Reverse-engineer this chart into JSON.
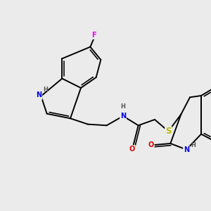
{
  "bg_color": "#ebebeb",
  "bond_color": "#000000",
  "bond_width": 1.4,
  "atom_colors": {
    "F": "#ee00ee",
    "N": "#0000ee",
    "O": "#dd0000",
    "S": "#bbbb00",
    "H": "#555555",
    "C": "#000000"
  },
  "font_size_atom": 7.0,
  "font_size_h": 6.0,
  "xlim": [
    0,
    10
  ],
  "ylim": [
    0,
    10
  ]
}
